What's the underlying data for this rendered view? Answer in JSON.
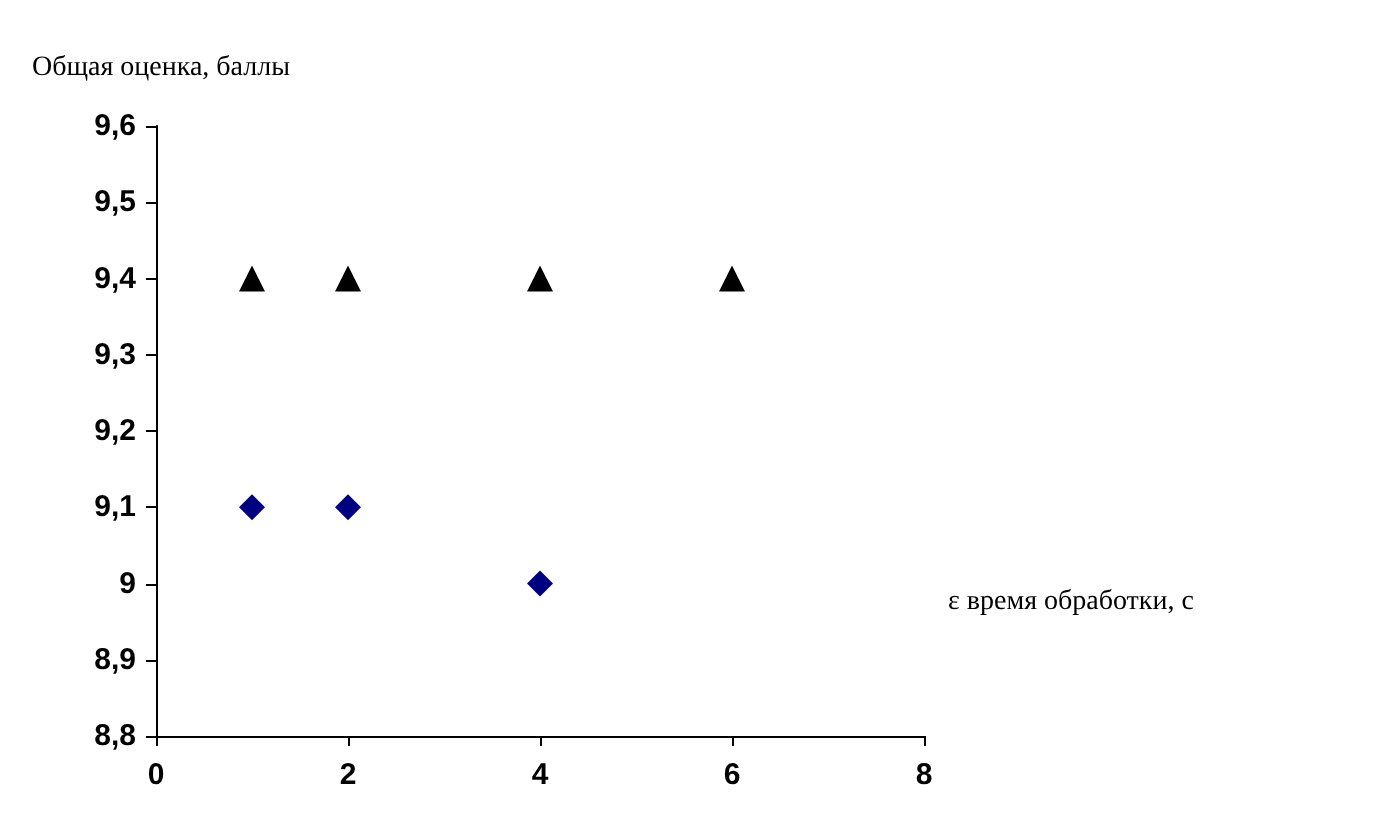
{
  "chart_data": {
    "type": "scatter",
    "xlabel": "ε время обработки, с",
    "ylabel": "Общая оценка, баллы",
    "xlim": [
      0,
      8
    ],
    "xticks": [
      0,
      2,
      4,
      6,
      8
    ],
    "ylim": [
      8.8,
      9.6
    ],
    "yticks": [
      {
        "value": 8.8,
        "label": "8,8"
      },
      {
        "value": 8.9,
        "label": "8,9"
      },
      {
        "value": 9,
        "label": "9"
      },
      {
        "value": 9.1,
        "label": "9,1"
      },
      {
        "value": 9.2,
        "label": "9,2"
      },
      {
        "value": 9.3,
        "label": "9,3"
      },
      {
        "value": 9.4,
        "label": "9,4"
      },
      {
        "value": 9.5,
        "label": "9,5"
      },
      {
        "value": 9.6,
        "label": "9,6"
      }
    ],
    "grid": false,
    "series": [
      {
        "color": "#000000",
        "marker": "triangle",
        "x": [
          1,
          2,
          4,
          6
        ],
        "values": [
          9.4,
          9.4,
          9.4,
          9.4
        ]
      },
      {
        "color": "#000080",
        "marker": "diamond",
        "x": [
          1,
          2,
          4
        ],
        "values": [
          9.1,
          9.1,
          9.0
        ]
      }
    ]
  }
}
